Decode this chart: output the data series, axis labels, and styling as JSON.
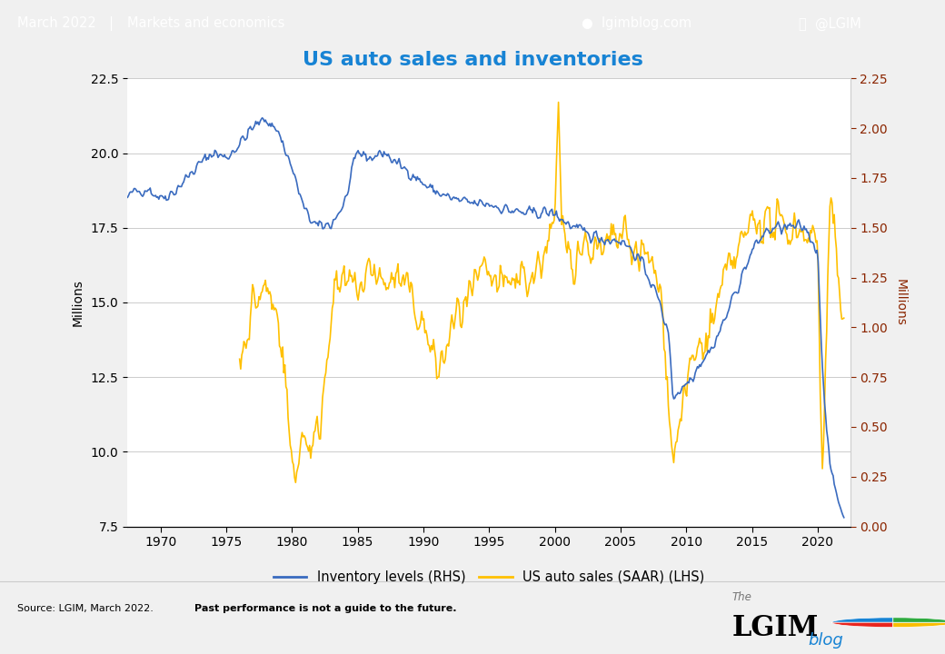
{
  "title": "US auto sales and inventories",
  "header_text": "March 2022",
  "header_sep": "|",
  "header_sub": "Markets and economics",
  "header_right1": "lgimblog.com",
  "header_right2": "@LGIM",
  "legend_inv": "Inventory levels (RHS)",
  "legend_sales": "US auto sales (SAAR) (LHS)",
  "ylabel_left": "Millions",
  "ylabel_right": "Millions",
  "left_ylim": [
    7.5,
    22.5
  ],
  "right_ylim": [
    0.0,
    2.25
  ],
  "left_yticks": [
    7.5,
    10.0,
    12.5,
    15.0,
    17.5,
    20.0,
    22.5
  ],
  "right_yticks": [
    0.0,
    0.25,
    0.5,
    0.75,
    1.0,
    1.25,
    1.5,
    1.75,
    2.0,
    2.25
  ],
  "xlim_start": 1967.5,
  "xlim_end": 2022.5,
  "xticks": [
    1970,
    1975,
    1980,
    1985,
    1990,
    1995,
    2000,
    2005,
    2010,
    2015,
    2020
  ],
  "header_bg": "#1783d4",
  "plot_bg": "#ffffff",
  "outer_bg": "#f0f0f0",
  "inv_color": "#3a6bbf",
  "sales_color": "#ffc000",
  "title_color": "#1783d4",
  "header_color": "#ffffff",
  "right_tick_color": "#8B2500",
  "grid_color": "#cccccc"
}
